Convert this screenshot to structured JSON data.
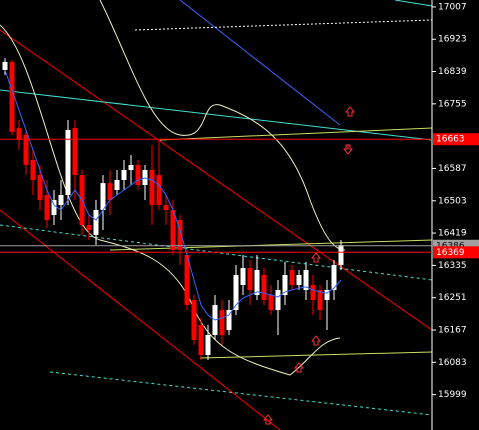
{
  "chart_data": {
    "type": "candlestick",
    "ylim": [
      15907,
      17025
    ],
    "yticks": [
      17007,
      16923,
      16839,
      16755,
      16587,
      16503,
      16419,
      16335,
      16251,
      16167,
      16083,
      15999
    ],
    "up_color": "#ffffff",
    "down_color": "#ff0000",
    "open": [
      16843,
      16864,
      16692,
      16674,
      16609,
      16570,
      16518,
      16466,
      16492,
      16518,
      16692,
      16570,
      16440,
      16414,
      16479,
      16549,
      16531,
      16557,
      16583,
      16596,
      16544,
      16583,
      16570,
      16492,
      16479,
      16453,
      16362,
      16245,
      16180,
      16102,
      16154,
      16219,
      16167,
      16219,
      16284,
      16328,
      16258,
      16310,
      16258,
      16219,
      16258,
      16323,
      16284,
      16271,
      16284,
      16271,
      16245,
      16271,
      16336
    ],
    "close": [
      16864,
      16682,
      16661,
      16596,
      16557,
      16505,
      16453,
      16505,
      16518,
      16687,
      16570,
      16440,
      16427,
      16479,
      16549,
      16505,
      16557,
      16583,
      16596,
      16544,
      16583,
      16492,
      16492,
      16479,
      16375,
      16375,
      16232,
      16141,
      16102,
      16154,
      16232,
      16154,
      16219,
      16310,
      16328,
      16271,
      16323,
      16245,
      16219,
      16271,
      16310,
      16284,
      16310,
      16323,
      16245,
      16219,
      16271,
      16336,
      16388
    ],
    "high": [
      16874,
      16869,
      16713,
      16687,
      16635,
      16596,
      16557,
      16531,
      16557,
      16713,
      16713,
      16583,
      16466,
      16505,
      16570,
      16583,
      16583,
      16609,
      16622,
      16609,
      16596,
      16648,
      16661,
      16518,
      16505,
      16466,
      16375,
      16258,
      16198,
      16180,
      16258,
      16245,
      16245,
      16336,
      16362,
      16349,
      16362,
      16328,
      16284,
      16297,
      16344,
      16336,
      16323,
      16344,
      16310,
      16284,
      16297,
      16349,
      16401
    ],
    "low": [
      16830,
      16674,
      16635,
      16570,
      16518,
      16479,
      16432,
      16440,
      16453,
      16492,
      16505,
      16414,
      16401,
      16388,
      16427,
      16466,
      16518,
      16531,
      16544,
      16531,
      16505,
      16440,
      16479,
      16440,
      16362,
      16336,
      16219,
      16128,
      16089,
      16089,
      16141,
      16128,
      16154,
      16206,
      16258,
      16232,
      16245,
      16232,
      16206,
      16154,
      16232,
      16271,
      16271,
      16245,
      16206,
      16193,
      16167,
      16245,
      16323
    ],
    "ma": {
      "color": "#3366ff",
      "values": [
        16843,
        16791,
        16739,
        16687,
        16635,
        16583,
        16531,
        16492,
        16479,
        16505,
        16531,
        16505,
        16466,
        16453,
        16479,
        16505,
        16518,
        16531,
        16544,
        16557,
        16562,
        16557,
        16544,
        16518,
        16479,
        16427,
        16362,
        16297,
        16232,
        16206,
        16193,
        16198,
        16206,
        16232,
        16250,
        16258,
        16266,
        16263,
        16258,
        16253,
        16266,
        16271,
        16276,
        16279,
        16271,
        16266,
        16263,
        16276,
        16297
      ]
    },
    "levels": [
      16663,
      16386,
      16369
    ],
    "level_colors": [
      "#ff0000",
      "#a0a0a0",
      "#ff0000"
    ],
    "level_text_colors": [
      "#ffffff",
      "#000000",
      "#ffffff"
    ]
  }
}
